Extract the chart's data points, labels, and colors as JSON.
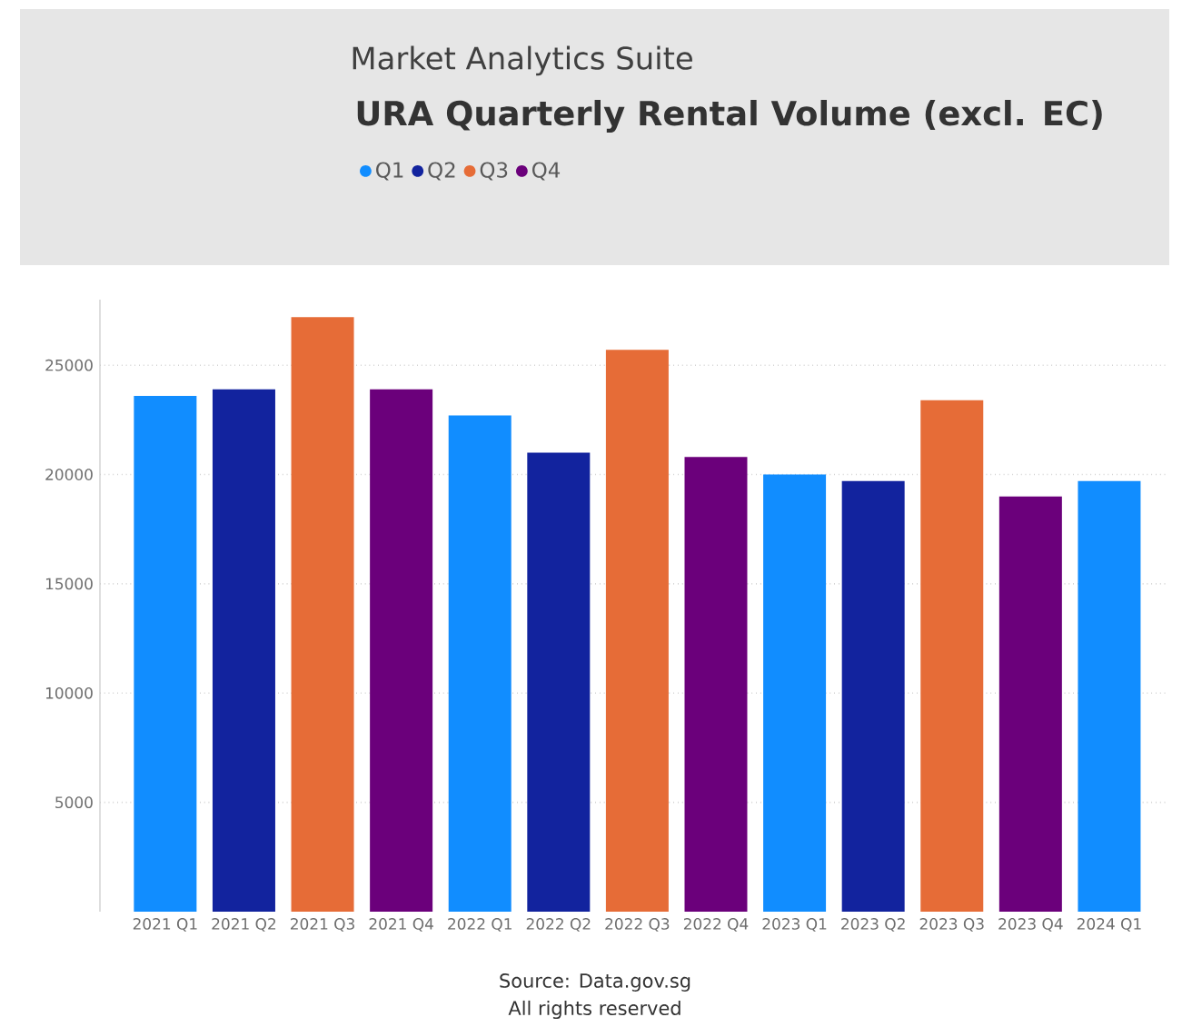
{
  "chart_data": {
    "type": "bar",
    "subtitle": "Market Analytics Suite",
    "title": "URA Quarterly Rental Volume (excl. EC)",
    "categories": [
      "2021 Q1",
      "2021 Q2",
      "2021 Q3",
      "2021 Q4",
      "2022 Q1",
      "2022 Q2",
      "2022 Q3",
      "2022 Q4",
      "2023 Q1",
      "2023 Q2",
      "2023 Q3",
      "2023 Q4",
      "2024 Q1"
    ],
    "series": [
      {
        "name": "Q1",
        "color": "#118dff",
        "values": [
          23600,
          null,
          null,
          null,
          22700,
          null,
          null,
          null,
          20000,
          null,
          null,
          null,
          19700
        ]
      },
      {
        "name": "Q2",
        "color": "#12239e",
        "values": [
          null,
          23900,
          null,
          null,
          null,
          21000,
          null,
          null,
          null,
          19700,
          null,
          null,
          null
        ]
      },
      {
        "name": "Q3",
        "color": "#e66c37",
        "values": [
          null,
          null,
          27200,
          null,
          null,
          null,
          25700,
          null,
          null,
          null,
          23400,
          null,
          null
        ]
      },
      {
        "name": "Q4",
        "color": "#6b007b",
        "values": [
          null,
          null,
          null,
          23900,
          null,
          null,
          null,
          20800,
          null,
          null,
          null,
          19000,
          null
        ]
      }
    ],
    "ylim": [
      0,
      28000
    ],
    "yticks": [
      5000,
      10000,
      15000,
      20000,
      25000
    ],
    "grid": "y",
    "legend": "top left",
    "annotations": [
      "Source: Data.gov.sg",
      "All rights reserved"
    ]
  }
}
